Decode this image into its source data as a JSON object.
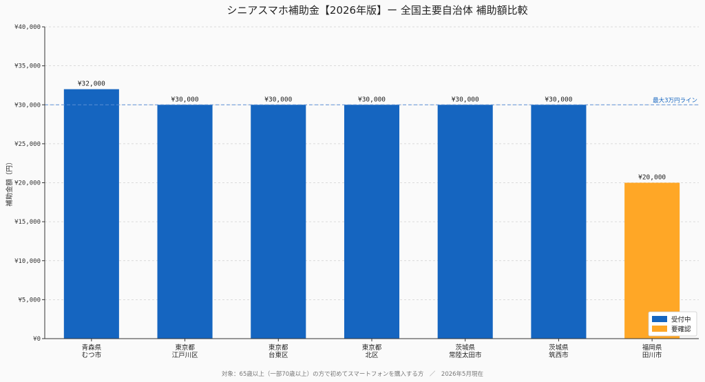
{
  "chart_data": {
    "type": "bar",
    "title": "シニアスマホ補助金【2026年版】ー 全国主要自治体 補助額比較",
    "ylabel": "補助金額（円）",
    "xlabel": "",
    "ylim": [
      0,
      40000
    ],
    "yticks": [
      0,
      5000,
      10000,
      15000,
      20000,
      25000,
      30000,
      35000,
      40000
    ],
    "ytick_labels": [
      "¥0",
      "¥5,000",
      "¥10,000",
      "¥15,000",
      "¥20,000",
      "¥25,000",
      "¥30,000",
      "¥35,000",
      "¥40,000"
    ],
    "grid": true,
    "categories": [
      [
        "青森県",
        "むつ市"
      ],
      [
        "東京都",
        "江戸川区"
      ],
      [
        "東京都",
        "台東区"
      ],
      [
        "東京都",
        "北区"
      ],
      [
        "茨城県",
        "常陸太田市"
      ],
      [
        "茨城県",
        "筑西市"
      ],
      [
        "福岡県",
        "田川市"
      ]
    ],
    "values": [
      32000,
      30000,
      30000,
      30000,
      30000,
      30000,
      20000
    ],
    "value_labels": [
      "¥32,000",
      "¥30,000",
      "¥30,000",
      "¥30,000",
      "¥30,000",
      "¥30,000",
      "¥20,000"
    ],
    "status": [
      "受付中",
      "受付中",
      "受付中",
      "受付中",
      "受付中",
      "受付中",
      "要確認"
    ],
    "reference_line": {
      "value": 30000,
      "label": "最大3万円ライン",
      "color": "#5b8fd6"
    },
    "legend": {
      "position": "bottom-right",
      "items": [
        {
          "label": "受付中",
          "color": "#1565c0"
        },
        {
          "label": "要確認",
          "color": "#ffa726"
        }
      ]
    },
    "footnote": "対象：65歳以上（一部70歳以上）の方で初めてスマートフォンを購入する方　／　2026年5月現在"
  }
}
